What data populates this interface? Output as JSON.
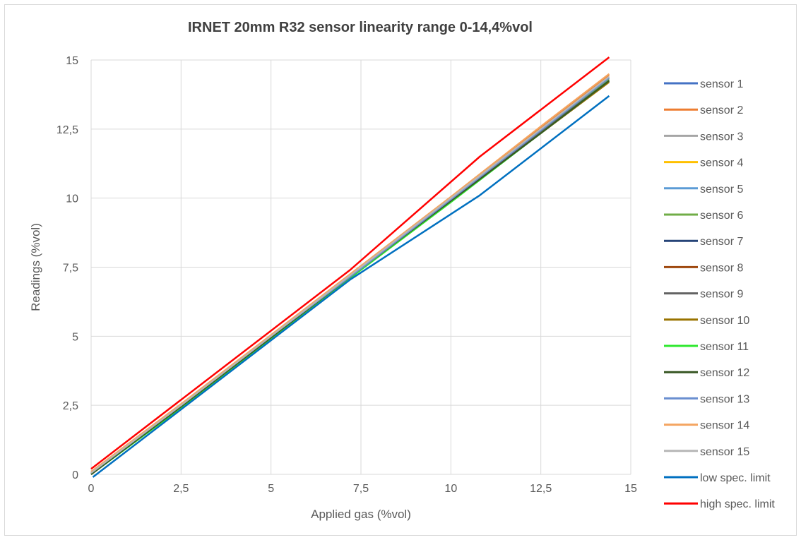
{
  "chart_data": {
    "type": "line",
    "title": "IRNET 20mm R32 sensor linearity range 0-14,4%vol",
    "xlabel": "Applied gas (%vol)",
    "ylabel": "Readings (%vol)",
    "xlim": [
      0,
      15
    ],
    "ylim": [
      0,
      15
    ],
    "x_ticks": [
      "0",
      "2,5",
      "5",
      "7,5",
      "10",
      "12,5",
      "15"
    ],
    "y_ticks": [
      "0",
      "2,5",
      "5",
      "7,5",
      "10",
      "12,5",
      "15"
    ],
    "grid": true,
    "legend_position": "right",
    "series": [
      {
        "name": "sensor 1",
        "color": "#4472C4",
        "x": [
          0,
          2.5,
          5,
          7.5,
          10,
          12.5,
          14.4
        ],
        "y": [
          0.05,
          2.5,
          5.0,
          7.45,
          9.95,
          12.45,
          14.35
        ]
      },
      {
        "name": "sensor 2",
        "color": "#ED7D31",
        "x": [
          0,
          2.5,
          5,
          7.5,
          10,
          12.5,
          14.4
        ],
        "y": [
          0.05,
          2.5,
          5.0,
          7.5,
          10.0,
          12.55,
          14.45
        ]
      },
      {
        "name": "sensor 3",
        "color": "#A5A5A5",
        "x": [
          0,
          2.5,
          5,
          7.5,
          10,
          12.5,
          14.4
        ],
        "y": [
          0.05,
          2.5,
          5.0,
          7.5,
          9.95,
          12.5,
          14.4
        ]
      },
      {
        "name": "sensor 4",
        "color": "#FFC000",
        "x": [
          0,
          2.5,
          5,
          7.5,
          10,
          12.5,
          14.4
        ],
        "y": [
          0.05,
          2.5,
          5.0,
          7.5,
          10.0,
          12.5,
          14.4
        ]
      },
      {
        "name": "sensor 5",
        "color": "#5B9BD5",
        "x": [
          0,
          2.5,
          5,
          7.5,
          10,
          12.5,
          14.4
        ],
        "y": [
          0.05,
          2.5,
          5.0,
          7.5,
          9.95,
          12.45,
          14.35
        ]
      },
      {
        "name": "sensor 6",
        "color": "#70AD47",
        "x": [
          0,
          2.5,
          5,
          7.5,
          10,
          12.5,
          14.4
        ],
        "y": [
          0.0,
          2.45,
          4.95,
          7.45,
          9.9,
          12.4,
          14.3
        ]
      },
      {
        "name": "sensor 7",
        "color": "#264478",
        "x": [
          0,
          2.5,
          5,
          7.5,
          10,
          12.5,
          14.4
        ],
        "y": [
          0.0,
          2.45,
          4.95,
          7.45,
          9.9,
          12.35,
          14.25
        ]
      },
      {
        "name": "sensor 8",
        "color": "#9E480E",
        "x": [
          0,
          2.5,
          5,
          7.5,
          10,
          12.5,
          14.4
        ],
        "y": [
          0.0,
          2.45,
          4.95,
          7.45,
          9.9,
          12.35,
          14.2
        ]
      },
      {
        "name": "sensor 9",
        "color": "#636363",
        "x": [
          0,
          2.5,
          5,
          7.5,
          10,
          12.5,
          14.4
        ],
        "y": [
          0.0,
          2.45,
          4.95,
          7.45,
          9.9,
          12.4,
          14.25
        ]
      },
      {
        "name": "sensor 10",
        "color": "#997300",
        "x": [
          0,
          2.5,
          5,
          7.5,
          10,
          12.5,
          14.4
        ],
        "y": [
          0.0,
          2.45,
          4.95,
          7.45,
          9.9,
          12.35,
          14.2
        ]
      },
      {
        "name": "sensor 11",
        "color": "#2EE82E",
        "x": [
          0,
          2.5,
          5,
          7.5,
          10,
          12.5,
          14.4
        ],
        "y": [
          0.0,
          2.4,
          4.9,
          7.4,
          9.85,
          12.35,
          14.25
        ]
      },
      {
        "name": "sensor 12",
        "color": "#375623",
        "x": [
          0,
          2.5,
          5,
          7.5,
          10,
          12.5,
          14.4
        ],
        "y": [
          0.0,
          2.45,
          4.95,
          7.45,
          9.9,
          12.35,
          14.25
        ]
      },
      {
        "name": "sensor 13",
        "color": "#698ED0",
        "x": [
          0,
          2.5,
          5,
          7.5,
          10,
          12.5,
          14.4
        ],
        "y": [
          0.05,
          2.5,
          5.0,
          7.45,
          9.95,
          12.45,
          14.35
        ]
      },
      {
        "name": "sensor 14",
        "color": "#F4A460",
        "x": [
          0,
          2.5,
          5,
          7.5,
          10,
          12.5,
          14.4
        ],
        "y": [
          0.1,
          2.55,
          5.05,
          7.55,
          10.05,
          12.6,
          14.5
        ]
      },
      {
        "name": "sensor 15",
        "color": "#B7B7B7",
        "x": [
          0,
          2.5,
          5,
          7.5,
          10,
          12.5,
          14.4
        ],
        "y": [
          0.05,
          2.5,
          5.0,
          7.5,
          10.0,
          12.5,
          14.4
        ]
      },
      {
        "name": "low spec. limit",
        "color": "#0070C0",
        "x": [
          0.05,
          7.2,
          10.8,
          14.4
        ],
        "y": [
          -0.1,
          7.05,
          10.1,
          13.7
        ]
      },
      {
        "name": "high spec. limit",
        "color": "#FF0000",
        "x": [
          0,
          7.2,
          10.8,
          14.4
        ],
        "y": [
          0.2,
          7.4,
          11.5,
          15.1
        ]
      }
    ]
  }
}
